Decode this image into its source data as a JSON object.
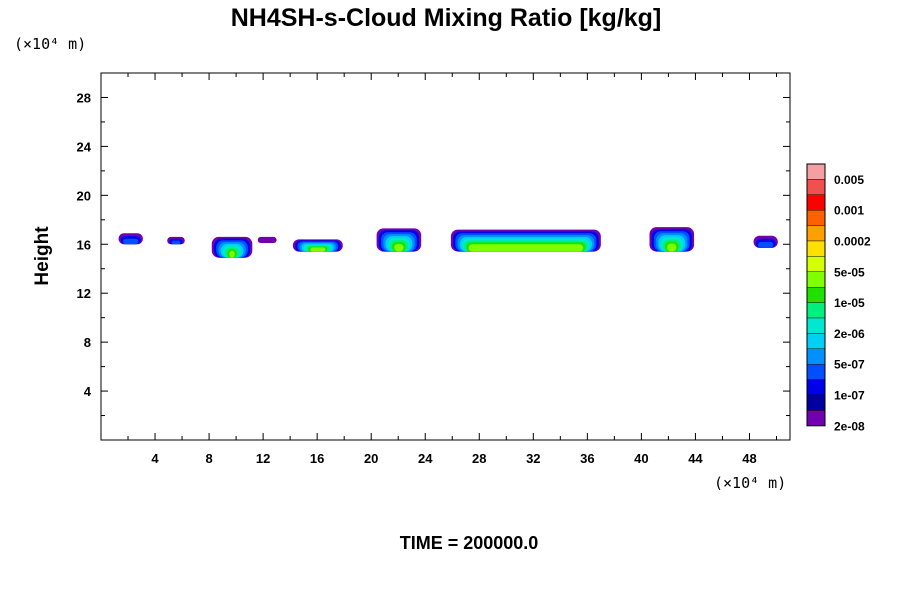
{
  "chart_data": {
    "type": "heatmap",
    "title": "NH4SH-s-Cloud Mixing Ratio [kg/kg]",
    "ylabel": "Height",
    "xlabel": "",
    "x_unit_label": "(×10⁴ m)",
    "y_unit_label": "(×10⁴ m)",
    "xlim": [
      0,
      51
    ],
    "ylim": [
      0,
      30
    ],
    "x_ticks": [
      4,
      8,
      12,
      16,
      20,
      24,
      28,
      32,
      36,
      40,
      44,
      48
    ],
    "y_ticks": [
      4,
      8,
      12,
      16,
      20,
      24,
      28
    ],
    "x_tick_labels": [
      "4",
      "8",
      "12",
      "16",
      "20",
      "24",
      "28",
      "32",
      "36",
      "40",
      "44",
      "48"
    ],
    "y_tick_labels": [
      "4",
      "8",
      "12",
      "16",
      "20",
      "24",
      "28"
    ],
    "footer": "TIME = 200000.0",
    "colorbar": {
      "colors": [
        "#f5a0a0",
        "#f05050",
        "#ff0000",
        "#ff6000",
        "#ffa000",
        "#ffe000",
        "#d4ff00",
        "#80ff00",
        "#20e000",
        "#00f080",
        "#00e8d0",
        "#00d0f8",
        "#0090ff",
        "#0050ff",
        "#0000e8",
        "#0000a0",
        "#7000b0"
      ],
      "labels": [
        "0.005",
        "0.001",
        "0.0002",
        "5e-05",
        "1e-05",
        "2e-06",
        "5e-07",
        "1e-07",
        "2e-08"
      ]
    },
    "cloud_blobs": [
      {
        "x0": 1.3,
        "x1": 3.1,
        "top": 16.9,
        "bottom": 16.0,
        "max_level": "1e-07"
      },
      {
        "x0": 4.9,
        "x1": 6.2,
        "top": 16.6,
        "bottom": 16.0,
        "max_level": "1e-07"
      },
      {
        "x0": 8.2,
        "x1": 11.2,
        "top": 16.6,
        "bottom": 14.9,
        "max_level": "5e-05"
      },
      {
        "x0": 11.6,
        "x1": 13.0,
        "top": 16.6,
        "bottom": 16.1,
        "max_level": "2e-08"
      },
      {
        "x0": 14.2,
        "x1": 17.9,
        "top": 16.4,
        "bottom": 15.4,
        "max_level": "5e-05"
      },
      {
        "x0": 20.4,
        "x1": 23.7,
        "top": 17.3,
        "bottom": 15.4,
        "max_level": "5e-05"
      },
      {
        "x0": 25.9,
        "x1": 37.0,
        "top": 17.2,
        "bottom": 15.4,
        "max_level": "5e-05"
      },
      {
        "x0": 40.6,
        "x1": 43.9,
        "top": 17.4,
        "bottom": 15.4,
        "max_level": "5e-05"
      },
      {
        "x0": 48.3,
        "x1": 50.1,
        "top": 16.7,
        "bottom": 15.7,
        "max_level": "1e-07"
      }
    ]
  }
}
